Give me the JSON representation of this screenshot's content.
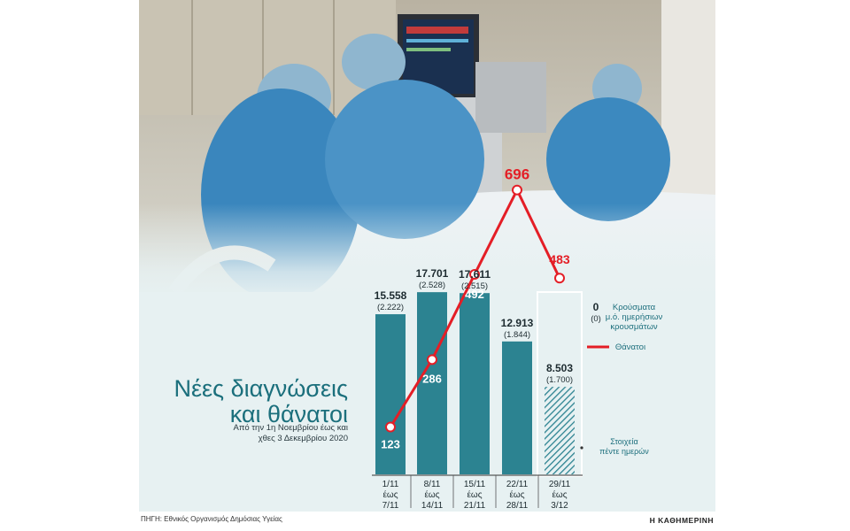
{
  "title_line1": "Νέες διαγνώσεις",
  "title_line2": "και θάνατοι",
  "subtitle_line1": "Από την 1η Νοεμβρίου έως και",
  "subtitle_line2": "χθες 3 Δεκεμβρίου 2020",
  "source": "ΠΗΓΗ: Εθνικός Οργανισμός Δημόσιας Υγείας",
  "brand": "Η ΚΑΘΗΜΕΡΙΝΗ",
  "colors": {
    "bar": "#2c8391",
    "line": "#e41e26",
    "title": "#1b6f7c",
    "background": "#e7f1f2"
  },
  "chart_data": {
    "type": "bar",
    "categories": [
      [
        "1/11",
        "έως",
        "7/11"
      ],
      [
        "8/11",
        "έως",
        "14/11"
      ],
      [
        "15/11",
        "έως",
        "21/11"
      ],
      [
        "22/11",
        "έως",
        "28/11"
      ],
      [
        "29/11",
        "έως",
        "3/12"
      ]
    ],
    "series": [
      {
        "name": "Κρούσματα",
        "values": [
          15558,
          17701,
          17611,
          12913,
          8503
        ],
        "labels": [
          "15.558",
          "17.701",
          "17.611",
          "12.913",
          "8.503"
        ]
      },
      {
        "name": "μ.ό. ημερήσιων κρουσμάτων",
        "values": [
          2222,
          2528,
          2515,
          1844,
          1700
        ],
        "labels": [
          "(2.222)",
          "(2.528)",
          "(2.515)",
          "(1.844)",
          "(1.700)"
        ]
      },
      {
        "name": "Θάνατοι",
        "type": "line",
        "values": [
          123,
          286,
          492,
          696,
          483
        ],
        "labels": [
          "123",
          "286",
          "492",
          "696",
          "483"
        ]
      }
    ],
    "partial_last_period": true,
    "annotation": [
      "Στοιχεία",
      "πέντε ημερών"
    ],
    "legend": {
      "position": "right",
      "cases_marker": "0",
      "avg_marker": "(0)",
      "cases_label": "Κρούσματα",
      "avg_label_line1": "μ.ό. ημερήσιων",
      "avg_label_line2": "κρουσμάτων",
      "deaths_label": "Θάνατοι"
    },
    "title": "",
    "xlabel": "",
    "ylabel": ""
  }
}
